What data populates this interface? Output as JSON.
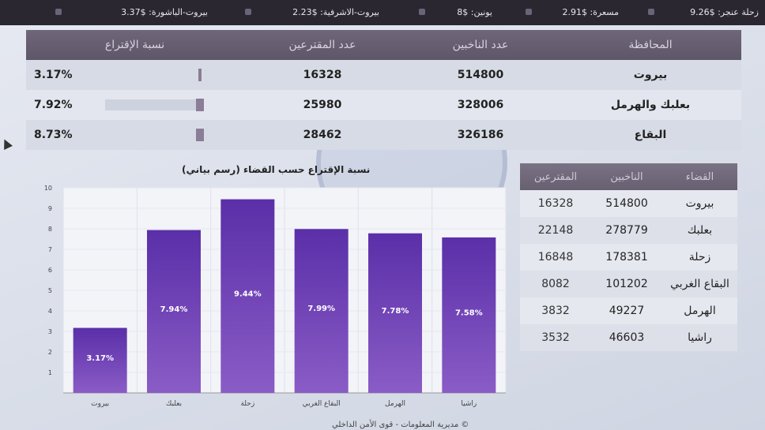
{
  "ticker": [
    {
      "text": "زحلة عنجر: $9.26",
      "x": 0
    },
    {
      "text": "مسعرة: $2.91",
      "x": 1
    },
    {
      "text": "يونين: $8",
      "x": 2
    },
    {
      "text": "بيروت-الاشرفية: $2.23",
      "x": 3
    },
    {
      "text": "بيروت-الباشورة: $3.37",
      "x": 4
    }
  ],
  "summary_table": {
    "headers": [
      "المحافظة",
      "عدد الناخبين",
      "عدد المقترعين",
      "نسبة الإقتراع"
    ],
    "rows": [
      {
        "name": "بيروت",
        "voters": "514800",
        "ballots": "16328",
        "pct": "3.17%",
        "pct_value": 3.17
      },
      {
        "name": "بعلبك والهرمل",
        "voters": "328006",
        "ballots": "25980",
        "pct": "7.92%",
        "pct_value": 7.92
      },
      {
        "name": "البقاع",
        "voters": "326186",
        "ballots": "28462",
        "pct": "8.73%",
        "pct_value": 8.73
      }
    ]
  },
  "chart_title": "نسبة الإقتراع حسب القضاء (رسم بياني)",
  "chart_data": {
    "type": "bar",
    "title": "نسبة الإقتراع حسب القضاء (رسم بياني)",
    "categories": [
      "بيروت",
      "بعلبك",
      "زحلة",
      "البقاع الغربي",
      "الهرمل",
      "راشيا"
    ],
    "values": [
      3.17,
      7.94,
      9.44,
      7.99,
      7.78,
      7.58
    ],
    "labels": [
      "3.17%",
      "7.94%",
      "9.44%",
      "7.99%",
      "7.78%",
      "7.58%"
    ],
    "yticks": [
      "1",
      "2",
      "3",
      "4",
      "5",
      "6",
      "7",
      "8",
      "9",
      "10"
    ],
    "ylim": [
      0,
      10
    ],
    "grid": true,
    "bar_color": "#6f45b5"
  },
  "district_table": {
    "headers": [
      "القضاء",
      "الناخبين",
      "المقترعين"
    ],
    "rows": [
      {
        "name": "بيروت",
        "voters": "514800",
        "ballots": "16328"
      },
      {
        "name": "بعلبك",
        "voters": "278779",
        "ballots": "22148"
      },
      {
        "name": "زحلة",
        "voters": "178381",
        "ballots": "16848"
      },
      {
        "name": "البقاع الغربي",
        "voters": "101202",
        "ballots": "8082"
      },
      {
        "name": "الهرمل",
        "voters": "49227",
        "ballots": "3832"
      },
      {
        "name": "راشيا",
        "voters": "46603",
        "ballots": "3532"
      }
    ]
  },
  "footer": "© مديرية المعلومات - قوى الأمن الداخلي"
}
